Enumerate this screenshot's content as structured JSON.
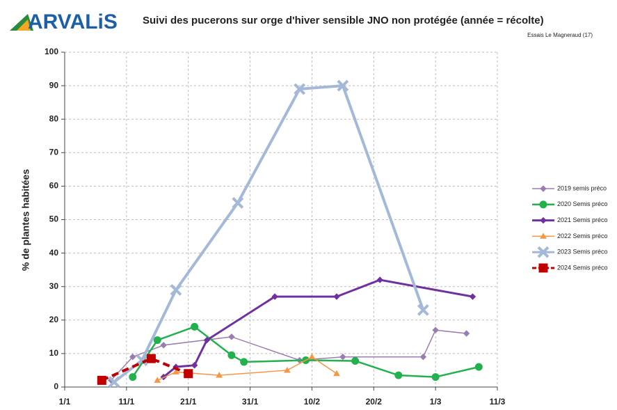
{
  "logo": "ARVALiS",
  "chart_data": {
    "type": "line",
    "title": "Suivi des pucerons sur orge d'hiver sensible JNO non protégée (année = récolte)",
    "subtitle": "Essais Le Magneraud (17)",
    "y_label": "% de plantes habitées",
    "xlim": [
      1,
      71
    ],
    "xticks": [
      {
        "value": 1,
        "label": "1/1"
      },
      {
        "value": 11,
        "label": "11/1"
      },
      {
        "value": 21,
        "label": "21/1"
      },
      {
        "value": 31,
        "label": "31/1"
      },
      {
        "value": 41,
        "label": "10/2"
      },
      {
        "value": 51,
        "label": "20/2"
      },
      {
        "value": 61,
        "label": "1/3"
      },
      {
        "value": 71,
        "label": "11/3"
      }
    ],
    "ylim": [
      0,
      100
    ],
    "yticks": [
      0,
      10,
      20,
      30,
      40,
      50,
      60,
      70,
      80,
      90,
      100
    ],
    "grid": true,
    "legend": "right",
    "series": [
      {
        "name": "2019 semis préco",
        "color": "#9a7db0",
        "marker": "diamond",
        "line_width": 1.5,
        "x": [
          8.5,
          12,
          17,
          28,
          39,
          46,
          59,
          61,
          66
        ],
        "values": [
          2,
          9,
          12.5,
          15,
          8,
          9,
          9,
          17,
          16
        ]
      },
      {
        "name": "2020 Semis préco",
        "color": "#22b14c",
        "marker": "circle",
        "line_width": 2.5,
        "x": [
          12,
          16,
          22,
          28,
          30,
          40,
          48,
          55,
          61,
          68
        ],
        "values": [
          3,
          14,
          18,
          9.5,
          7.5,
          8,
          7.8,
          3.5,
          3,
          6
        ]
      },
      {
        "name": "2021 Semis préco",
        "color": "#7030a0",
        "marker": "diamond",
        "line_width": 3,
        "x": [
          17,
          19,
          22,
          24,
          35,
          45,
          52,
          67
        ],
        "values": [
          3,
          6,
          6.5,
          14,
          27,
          27,
          32,
          27
        ]
      },
      {
        "name": "2022 Semis préco",
        "color": "#f79646",
        "marker": "triangle",
        "line_width": 1.5,
        "x": [
          16,
          19,
          26,
          37,
          41,
          45
        ],
        "values": [
          2,
          4.5,
          3.5,
          5,
          9,
          4
        ]
      },
      {
        "name": "2023 Semis préco",
        "color": "#a4b8d8",
        "marker": "x",
        "line_width": 4,
        "x": [
          9,
          13.5,
          19,
          29,
          39,
          46,
          59
        ],
        "values": [
          1.5,
          8,
          29,
          55,
          89,
          90,
          23
        ]
      },
      {
        "name": "2024 Semis préco",
        "color": "#c00000",
        "marker": "square",
        "line_width": 4,
        "dashed": true,
        "x": [
          7,
          15,
          21
        ],
        "values": [
          2,
          8.5,
          4
        ]
      }
    ]
  }
}
